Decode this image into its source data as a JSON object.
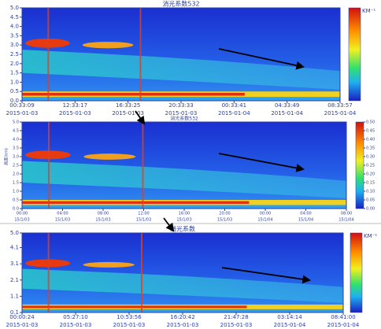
{
  "panels": [
    {
      "title": "消光系数532",
      "unit": "KM⁻¹",
      "ylim": [
        0,
        5
      ],
      "yticks": [
        {
          "value": 0,
          "label": "0.0"
        },
        {
          "value": 0.5,
          "label": "0.5"
        },
        {
          "value": 1,
          "label": "1.0"
        },
        {
          "value": 1.5,
          "label": "1.5"
        },
        {
          "value": 2,
          "label": "2.0"
        },
        {
          "value": 2.5,
          "label": "2.5"
        },
        {
          "value": 3,
          "label": "3.0"
        },
        {
          "value": 3.5,
          "label": "3.5"
        },
        {
          "value": 4,
          "label": "4.0"
        },
        {
          "value": 4.5,
          "label": "4.5"
        },
        {
          "value": 5,
          "label": "5.0"
        }
      ],
      "x_times": [
        "00:33:09",
        "12:33:17",
        "16:33:25",
        "20:33:33",
        "00:33:41",
        "04:33:49",
        "08:33:57"
      ],
      "x_dates": [
        "2015-01-03",
        "2015-01-03",
        "2015-01-03",
        "2015-01-03",
        "2015-01-04",
        "2015-01-04",
        "2015-01-04"
      ]
    },
    {
      "title": "消光系数532",
      "ylabel": "高度(km)",
      "ylim": [
        0,
        5
      ],
      "yticks": [
        {
          "value": 0,
          "label": "0.0"
        },
        {
          "value": 0.5,
          "label": "0.5"
        },
        {
          "value": 1,
          "label": "1.0"
        },
        {
          "value": 1.5,
          "label": "1.5"
        },
        {
          "value": 2,
          "label": "2.0"
        },
        {
          "value": 2.5,
          "label": "2.5"
        },
        {
          "value": 3,
          "label": "3.0"
        },
        {
          "value": 3.5,
          "label": "3.5"
        },
        {
          "value": 4,
          "label": "4.0"
        },
        {
          "value": 4.5,
          "label": "4.5"
        },
        {
          "value": 5,
          "label": "5.0"
        }
      ],
      "x_times": [
        "00:00",
        "04:00",
        "08:00",
        "12:00",
        "16:00",
        "20:00",
        "00:00",
        "04:00",
        "08:00"
      ],
      "x_dates": [
        "15/1/03",
        "15/1/03",
        "15/1/03",
        "15/1/03",
        "15/1/03",
        "15/1/03",
        "15/1/04",
        "15/1/04",
        "15/1/04"
      ],
      "clim": [
        0,
        0.5
      ],
      "cticks": [
        {
          "value": 0,
          "label": "0.00"
        },
        {
          "value": 0.05,
          "label": "0.05"
        },
        {
          "value": 0.1,
          "label": "0.10"
        },
        {
          "value": 0.15,
          "label": "0.15"
        },
        {
          "value": 0.2,
          "label": "0.20"
        },
        {
          "value": 0.25,
          "label": "0.25"
        },
        {
          "value": 0.3,
          "label": "0.30"
        },
        {
          "value": 0.35,
          "label": "0.35"
        },
        {
          "value": 0.4,
          "label": "0.40"
        },
        {
          "value": 0.45,
          "label": "0.45"
        },
        {
          "value": 0.5,
          "label": "0.50"
        }
      ]
    },
    {
      "title": "消光系数",
      "unit": "KM⁻¹",
      "ylim": [
        0.1,
        5
      ],
      "yticks": [
        0.1,
        1.1,
        2.1,
        3.1,
        4.1,
        {
          "value": 5,
          "label": "5.0"
        }
      ],
      "x_times": [
        "00:00:24",
        "05:27:10",
        "10:53:56",
        "16:20:42",
        "21:47:28",
        "03:14:14",
        "08:41:00"
      ],
      "x_dates": [
        "2015-01-03",
        "2015-01-03",
        "2015-01-03",
        "2015-01-03",
        "2015-01-03",
        "2015-01-04",
        "2015-01-04"
      ]
    }
  ]
}
